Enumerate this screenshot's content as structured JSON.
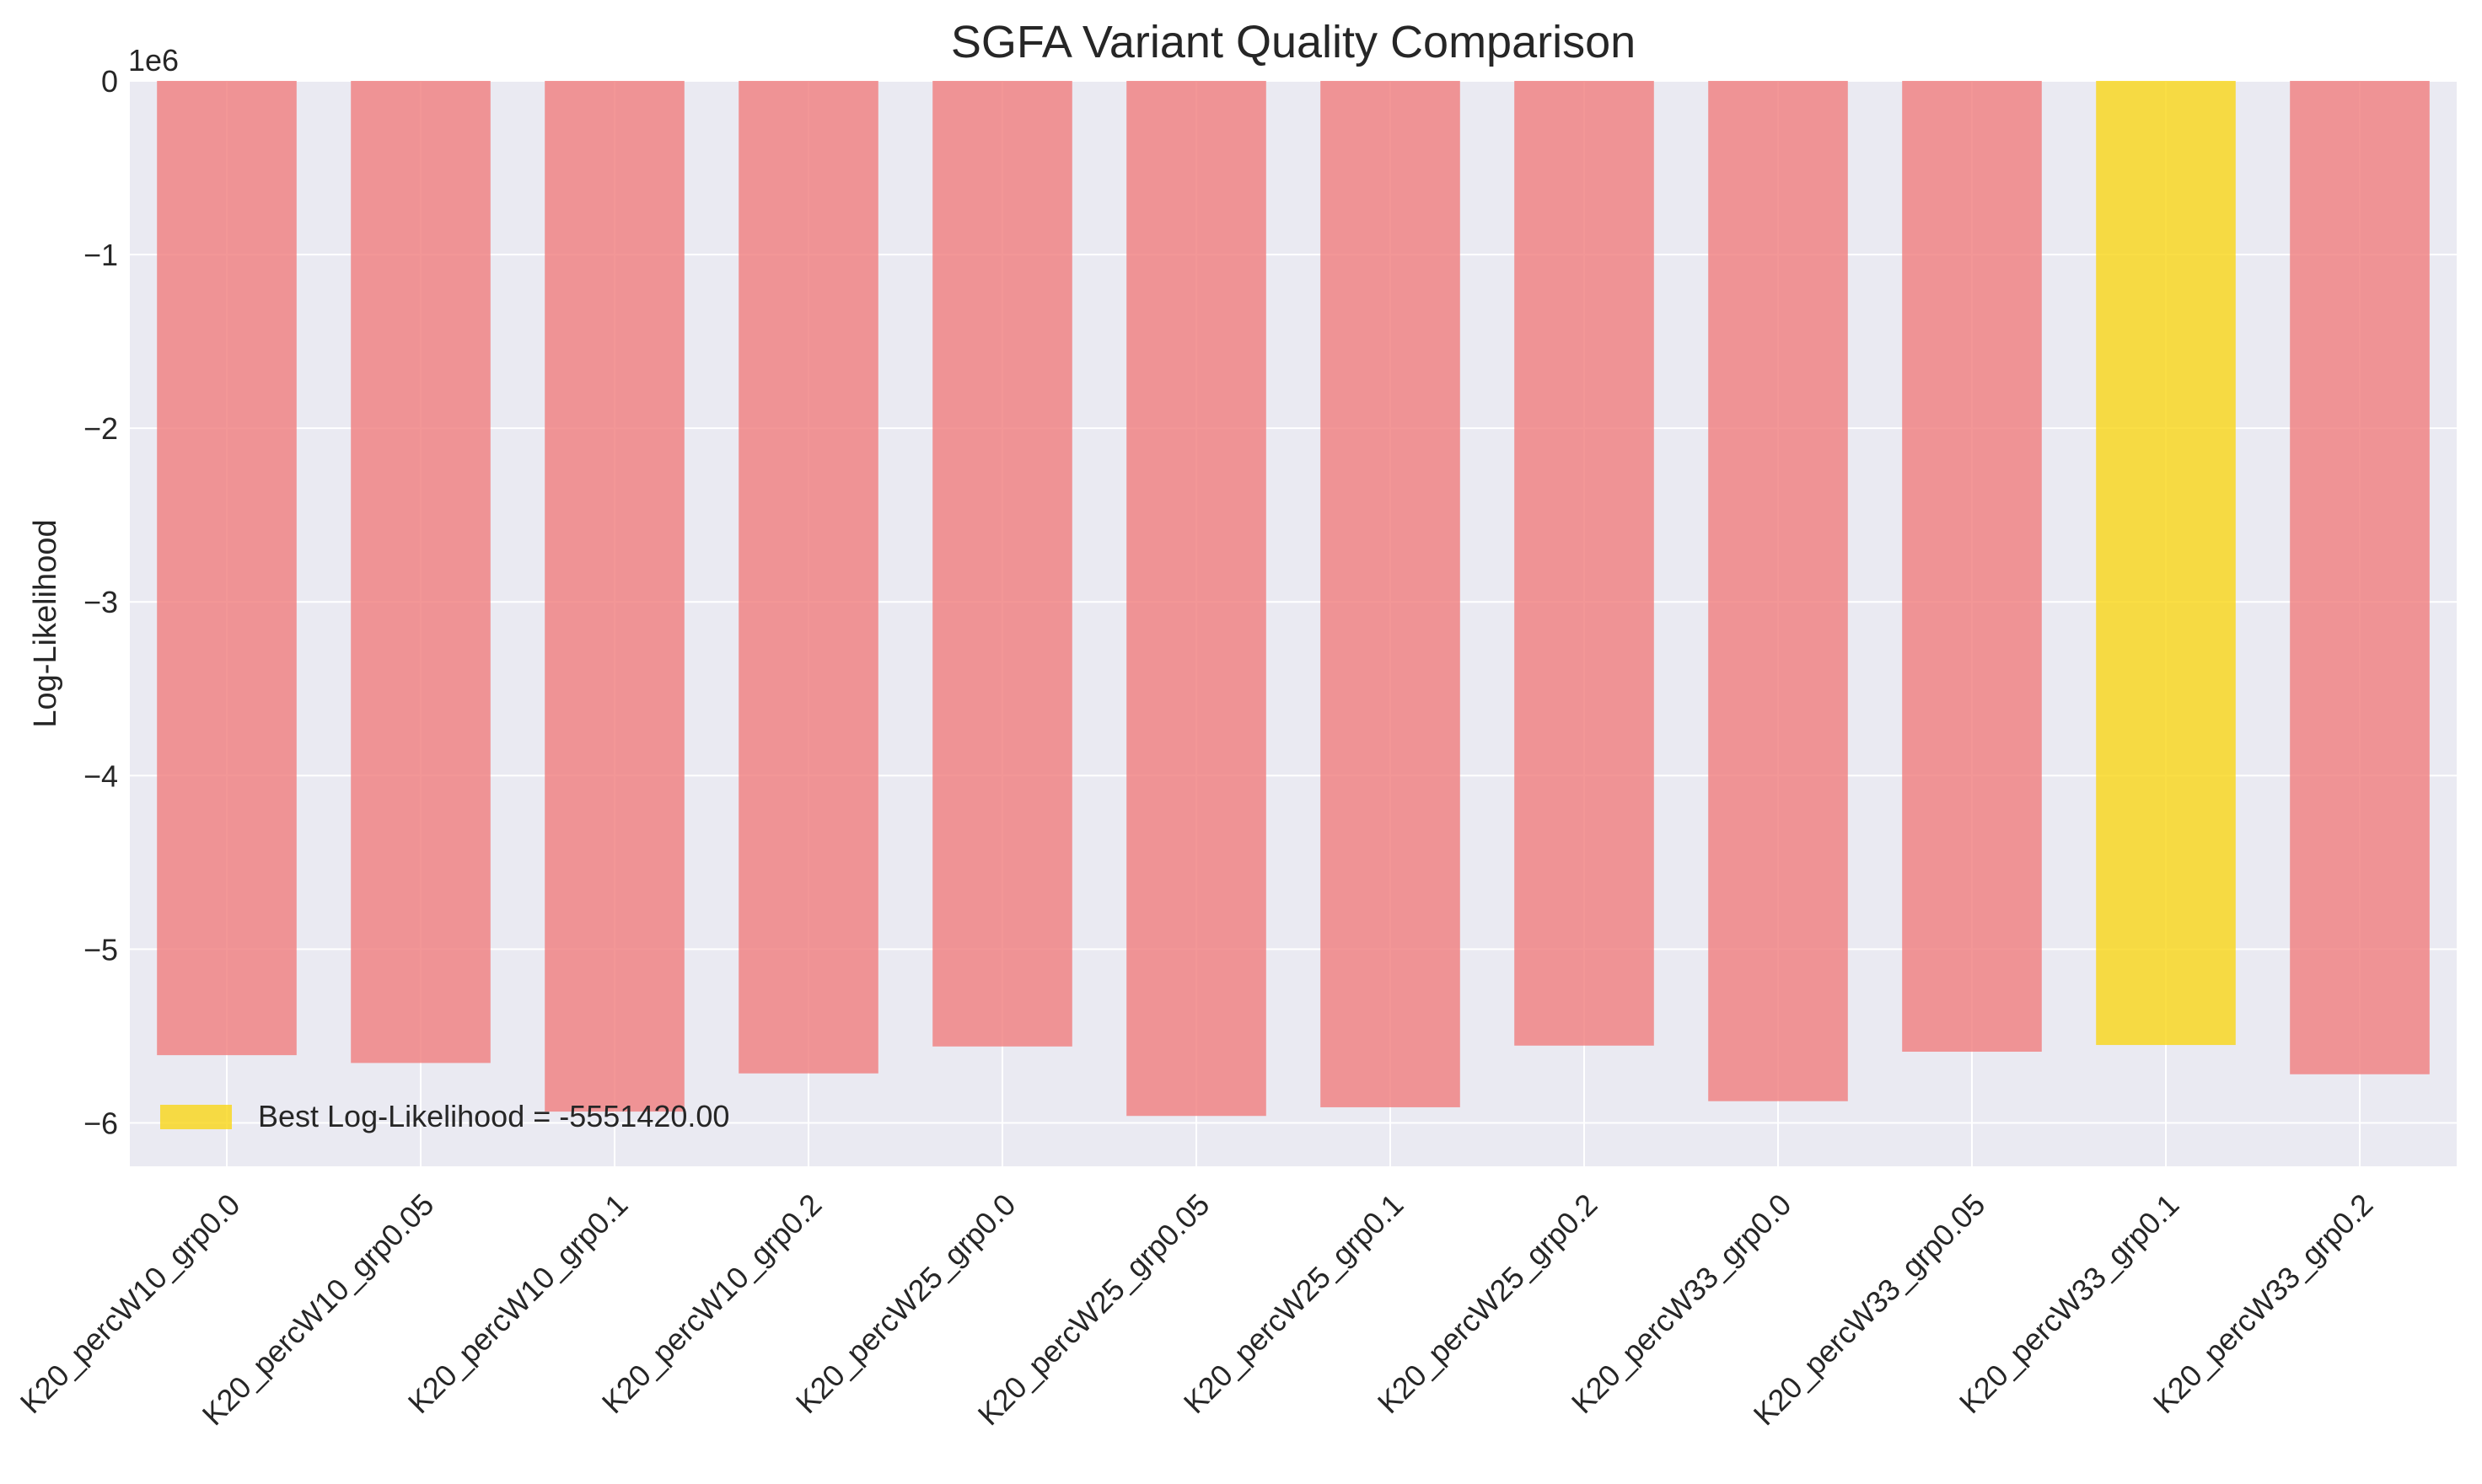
{
  "chart_data": {
    "type": "bar",
    "title": "SGFA Variant Quality Comparison",
    "xlabel": "",
    "ylabel": "Log-Likelihood",
    "y_offset_label": "1e6",
    "categories": [
      "K20_percW10_grp0.0",
      "K20_percW10_grp0.05",
      "K20_percW10_grp0.1",
      "K20_percW10_grp0.2",
      "K20_percW25_grp0.0",
      "K20_percW25_grp0.05",
      "K20_percW25_grp0.1",
      "K20_percW25_grp0.2",
      "K20_percW33_grp0.0",
      "K20_percW33_grp0.05",
      "K20_percW33_grp0.1",
      "K20_percW33_grp0.2"
    ],
    "values": [
      -5610000,
      -5655000,
      -5935000,
      -5715000,
      -5560000,
      -5960000,
      -5910000,
      -5555000,
      -5875000,
      -5590000,
      -5551420,
      -5720000
    ],
    "highlight_index": 10,
    "ylim": [
      -6250000,
      0
    ],
    "yticks": [
      0,
      -1000000,
      -2000000,
      -3000000,
      -4000000,
      -5000000,
      -6000000
    ],
    "ytick_labels": [
      "0",
      "−1",
      "−2",
      "−3",
      "−4",
      "−5",
      "−6"
    ],
    "grid": true,
    "legend": {
      "placement": "lower-left",
      "entries": [
        {
          "label": "Best Log-Likelihood = -5551420.00",
          "color": "#f9d71c"
        }
      ]
    },
    "colors": {
      "bar": "#f08080",
      "best_bar": "#f9d71c",
      "background": "#eaeaf2",
      "grid": "#ffffff",
      "text": "#262626"
    }
  }
}
